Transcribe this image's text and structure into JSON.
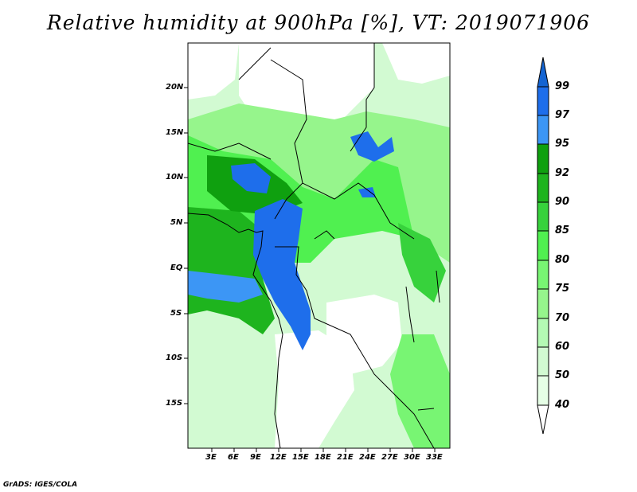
{
  "title": "Relative humidity at 900hPa [%], VT: 2019071906",
  "footer": "GrADS: IGES/COLA",
  "lat_labels": [
    "20N",
    "15N",
    "10N",
    "5N",
    "EQ",
    "5S",
    "10S",
    "15S"
  ],
  "lon_labels": [
    "3E",
    "6E",
    "9E",
    "12E",
    "15E",
    "18E",
    "21E",
    "24E",
    "27E",
    "30E",
    "33E"
  ],
  "colorbar": {
    "labels": [
      "99",
      "97",
      "95",
      "92",
      "90",
      "85",
      "80",
      "75",
      "70",
      "60",
      "50",
      "40"
    ],
    "colors": [
      "#1464d2",
      "#1e6eeb",
      "#3c96f5",
      "#0fa00f",
      "#1eb41e",
      "#37d23c",
      "#50f050",
      "#78f573",
      "#96f58c",
      "#b4fab4",
      "#d2fad2",
      "#e6ffe6",
      "#ffffff"
    ]
  }
}
